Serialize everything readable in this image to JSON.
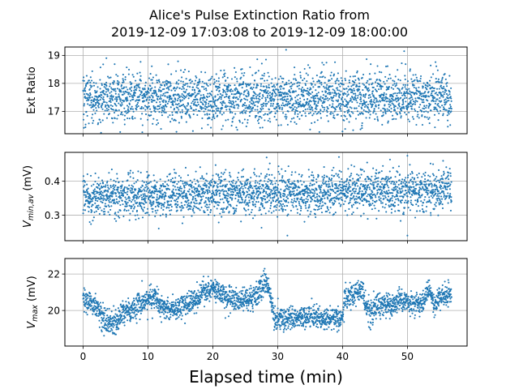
{
  "figure": {
    "title_line1": "Alice's Pulse Extinction Ratio from",
    "title_line2": "2019-12-09 17:03:08 to 2019-12-09 18:00:00",
    "xlabel": "Elapsed time (min)"
  },
  "chart_data": [
    {
      "type": "scatter",
      "ylabel": "Ext Ratio",
      "xlim": [
        -2.8,
        59.2
      ],
      "ylim": [
        16.2,
        19.3
      ],
      "xticks": [
        0,
        10,
        20,
        30,
        40,
        50
      ],
      "yticks": [
        17,
        18,
        19
      ],
      "ytick_labels": [
        "17",
        "18",
        "19"
      ],
      "grid": true,
      "point_color": "#1f77b4",
      "t_range": [
        0,
        56.8
      ],
      "mean": 17.5,
      "spread": 0.45,
      "outliers": [
        [
          3.6,
          18.9
        ],
        [
          28.2,
          18.85
        ],
        [
          31.3,
          19.2
        ],
        [
          49.5,
          19.15
        ],
        [
          35.0,
          16.35
        ],
        [
          43.0,
          16.4
        ]
      ]
    },
    {
      "type": "scatter",
      "ylabel_main": "V",
      "ylabel_sub": "min,av",
      "ylabel_unit": " (mV)",
      "xlim": [
        -2.8,
        59.2
      ],
      "ylim": [
        0.225,
        0.485
      ],
      "xticks": [
        0,
        10,
        20,
        30,
        40,
        50
      ],
      "yticks": [
        0.3,
        0.4
      ],
      "ytick_labels": [
        "0.3",
        "0.4"
      ],
      "grid": true,
      "point_color": "#1f77b4",
      "t_range": [
        0,
        56.8
      ],
      "mean_start": 0.355,
      "mean_end": 0.375,
      "spread": 0.03,
      "outliers": [
        [
          28.3,
          0.47
        ],
        [
          31.5,
          0.24
        ],
        [
          50.0,
          0.475
        ],
        [
          50.0,
          0.24
        ],
        [
          55.5,
          0.46
        ]
      ]
    },
    {
      "type": "scatter",
      "ylabel_main": "V",
      "ylabel_sub": "max",
      "ylabel_unit": " (mV)",
      "xlim": [
        -2.8,
        59.2
      ],
      "ylim": [
        18.05,
        22.85
      ],
      "xticks": [
        0,
        10,
        20,
        30,
        40,
        50
      ],
      "xtick_labels": [
        "0",
        "10",
        "20",
        "30",
        "40",
        "50"
      ],
      "yticks": [
        20,
        22
      ],
      "ytick_labels": [
        "20",
        "22"
      ],
      "grid": true,
      "point_color": "#1f77b4",
      "t_range": [
        0,
        56.8
      ],
      "trend": [
        [
          0,
          20.5
        ],
        [
          2,
          20.3
        ],
        [
          3.5,
          19.3
        ],
        [
          4.5,
          19.2
        ],
        [
          6,
          19.8
        ],
        [
          8,
          20.2
        ],
        [
          10,
          20.5
        ],
        [
          11,
          20.8
        ],
        [
          12,
          20.2
        ],
        [
          14,
          20.1
        ],
        [
          16,
          20.3
        ],
        [
          17.5,
          20.6
        ],
        [
          18.5,
          21.1
        ],
        [
          20,
          21.2
        ],
        [
          21.5,
          20.9
        ],
        [
          23,
          20.6
        ],
        [
          25,
          20.5
        ],
        [
          27,
          20.9
        ],
        [
          28.2,
          21.6
        ],
        [
          28.7,
          21.2
        ],
        [
          29.5,
          19.6
        ],
        [
          31,
          19.5
        ],
        [
          33,
          19.6
        ],
        [
          35,
          19.7
        ],
        [
          37,
          19.6
        ],
        [
          39,
          19.5
        ],
        [
          39.9,
          19.6
        ],
        [
          40.3,
          20.6
        ],
        [
          41,
          20.7
        ],
        [
          42,
          21.0
        ],
        [
          43,
          21.1
        ],
        [
          43.7,
          20.2
        ],
        [
          44.5,
          19.8
        ],
        [
          45.5,
          20.4
        ],
        [
          47,
          20.2
        ],
        [
          49,
          20.6
        ],
        [
          51,
          20.3
        ],
        [
          52.5,
          20.4
        ],
        [
          53.2,
          21.2
        ],
        [
          54.2,
          20.4
        ],
        [
          55.5,
          20.8
        ],
        [
          56.8,
          21.0
        ]
      ],
      "spread": 0.32
    }
  ]
}
